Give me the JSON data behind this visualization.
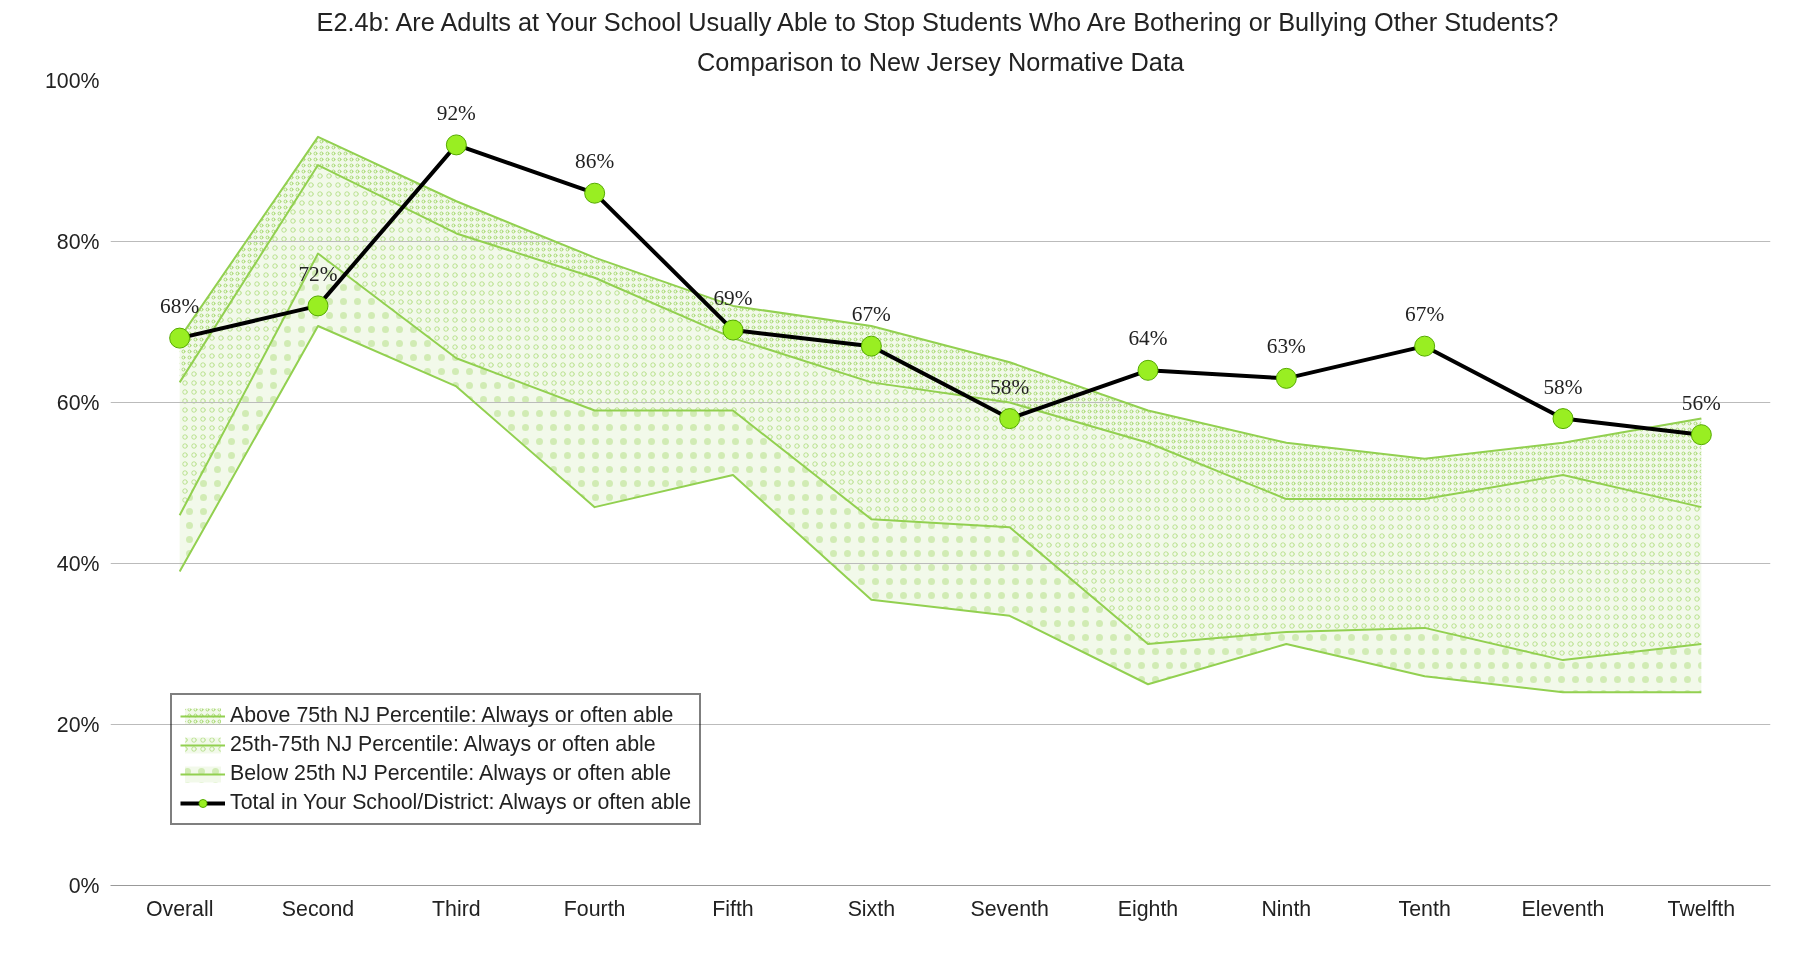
{
  "chart_data": {
    "type": "area",
    "title": "E2.4b: Are Adults at Your School Usually Able to Stop Students Who Are Bothering or Bullying Other Students?",
    "subtitle": "Comparison to New Jersey Normative Data",
    "categories": [
      "Overall",
      "Second",
      "Third",
      "Fourth",
      "Fifth",
      "Sixth",
      "Seventh",
      "Eighth",
      "Ninth",
      "Tenth",
      "Eleventh",
      "Twelfth"
    ],
    "series": [
      {
        "type": "line",
        "color": "#92d050",
        "values": [
          39,
          69.5,
          62,
          47,
          51,
          35.5,
          33.5,
          25,
          30,
          26,
          24,
          24
        ]
      },
      {
        "name": "Below 25th NJ Percentile: Always or often able",
        "color": "#92d050",
        "values": [
          46,
          78.5,
          65.5,
          59,
          59,
          45.5,
          44.5,
          30,
          31.5,
          32,
          28,
          30
        ]
      },
      {
        "name": "25th-75th NJ Percentile: Always or often able",
        "color": "#92d050",
        "values": [
          62.5,
          89.5,
          81,
          75.5,
          68,
          62.5,
          60,
          55,
          48,
          48,
          51,
          47
        ]
      },
      {
        "name": "Above 75th NJ Percentile: Always or often able",
        "color": "#92d050",
        "values": [
          68,
          93,
          85,
          78,
          72,
          69.5,
          65,
          59,
          55,
          53,
          55,
          58
        ]
      },
      {
        "name": "Total in Your School/District: Always or often able",
        "type": "line",
        "marker": "circle",
        "color": "#000000",
        "colors": [
          "#99ee22",
          "#99ee22",
          "#99ee22",
          "#99ee22",
          "#99ee22",
          "#99ee22",
          "#99ee22",
          "#99ee22",
          "#99ee22",
          "#99ee22",
          "#99ee22",
          "#99ee22"
        ],
        "values": [
          68,
          72,
          92,
          86,
          69,
          67,
          58,
          64,
          63,
          67,
          58,
          56
        ],
        "value_labels": [
          "68%",
          "72%",
          "92%",
          "86%",
          "69%",
          "67%",
          "58%",
          "64%",
          "63%",
          "67%",
          "58%",
          "56%"
        ]
      }
    ],
    "ylim": [
      0,
      100
    ],
    "yticks": [
      {
        "value": 0,
        "label": "0%"
      },
      {
        "value": 20,
        "label": "20%"
      },
      {
        "value": 40,
        "label": "40%"
      },
      {
        "value": 60,
        "label": "60%"
      },
      {
        "value": 80,
        "label": "80%"
      },
      {
        "value": 100,
        "label": "100%"
      }
    ],
    "grid": "y",
    "legend": "bottom left"
  }
}
